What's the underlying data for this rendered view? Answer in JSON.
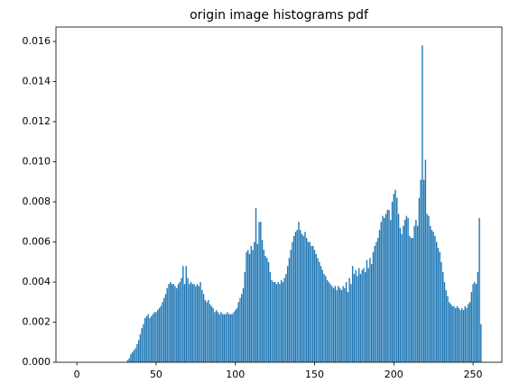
{
  "chart_data": {
    "type": "bar",
    "title": "origin image histograms pdf",
    "color": "#1f77b4",
    "bar_width": 0.8,
    "x": [
      0,
      1,
      2,
      3,
      4,
      5,
      6,
      7,
      8,
      9,
      10,
      11,
      12,
      13,
      14,
      15,
      16,
      17,
      18,
      19,
      20,
      21,
      22,
      23,
      24,
      25,
      26,
      27,
      28,
      29,
      30,
      31,
      32,
      33,
      34,
      35,
      36,
      37,
      38,
      39,
      40,
      41,
      42,
      43,
      44,
      45,
      46,
      47,
      48,
      49,
      50,
      51,
      52,
      53,
      54,
      55,
      56,
      57,
      58,
      59,
      60,
      61,
      62,
      63,
      64,
      65,
      66,
      67,
      68,
      69,
      70,
      71,
      72,
      73,
      74,
      75,
      76,
      77,
      78,
      79,
      80,
      81,
      82,
      83,
      84,
      85,
      86,
      87,
      88,
      89,
      90,
      91,
      92,
      93,
      94,
      95,
      96,
      97,
      98,
      99,
      100,
      101,
      102,
      103,
      104,
      105,
      106,
      107,
      108,
      109,
      110,
      111,
      112,
      113,
      114,
      115,
      116,
      117,
      118,
      119,
      120,
      121,
      122,
      123,
      124,
      125,
      126,
      127,
      128,
      129,
      130,
      131,
      132,
      133,
      134,
      135,
      136,
      137,
      138,
      139,
      140,
      141,
      142,
      143,
      144,
      145,
      146,
      147,
      148,
      149,
      150,
      151,
      152,
      153,
      154,
      155,
      156,
      157,
      158,
      159,
      160,
      161,
      162,
      163,
      164,
      165,
      166,
      167,
      168,
      169,
      170,
      171,
      172,
      173,
      174,
      175,
      176,
      177,
      178,
      179,
      180,
      181,
      182,
      183,
      184,
      185,
      186,
      187,
      188,
      189,
      190,
      191,
      192,
      193,
      194,
      195,
      196,
      197,
      198,
      199,
      200,
      201,
      202,
      203,
      204,
      205,
      206,
      207,
      208,
      209,
      210,
      211,
      212,
      213,
      214,
      215,
      216,
      217,
      218,
      219,
      220,
      221,
      222,
      223,
      224,
      225,
      226,
      227,
      228,
      229,
      230,
      231,
      232,
      233,
      234,
      235,
      236,
      237,
      238,
      239,
      240,
      241,
      242,
      243,
      244,
      245,
      246,
      247,
      248,
      249,
      250,
      251,
      252,
      253,
      254,
      255
    ],
    "values": [
      0,
      0,
      0,
      0,
      0,
      0,
      0,
      0,
      0,
      0,
      0,
      0,
      0,
      0,
      0,
      0,
      0,
      0,
      0,
      0,
      0,
      0,
      0,
      0,
      0,
      0,
      0,
      0,
      0,
      0,
      0,
      0,
      0.0001,
      0.0002,
      0.0004,
      0.0005,
      0.0006,
      0.0007,
      0.0009,
      0.0011,
      0.0014,
      0.0017,
      0.0019,
      0.0022,
      0.0023,
      0.0024,
      0.0022,
      0.0023,
      0.0024,
      0.0025,
      0.0025,
      0.0026,
      0.0027,
      0.0028,
      0.003,
      0.0032,
      0.0034,
      0.0037,
      0.0039,
      0.004,
      0.0039,
      0.0039,
      0.0038,
      0.0037,
      0.0039,
      0.004,
      0.0042,
      0.0048,
      0.0039,
      0.0048,
      0.0042,
      0.0039,
      0.004,
      0.0039,
      0.0039,
      0.0038,
      0.0039,
      0.0038,
      0.004,
      0.0036,
      0.0034,
      0.0031,
      0.003,
      0.0031,
      0.0029,
      0.0028,
      0.0027,
      0.0025,
      0.0026,
      0.0025,
      0.0024,
      0.0025,
      0.0024,
      0.0024,
      0.0024,
      0.0025,
      0.0024,
      0.0024,
      0.0024,
      0.0025,
      0.0026,
      0.0027,
      0.003,
      0.0032,
      0.0034,
      0.0037,
      0.0045,
      0.0055,
      0.0056,
      0.0054,
      0.0058,
      0.0056,
      0.006,
      0.0077,
      0.0059,
      0.007,
      0.007,
      0.0061,
      0.0056,
      0.0053,
      0.0052,
      0.005,
      0.0045,
      0.0041,
      0.004,
      0.004,
      0.0039,
      0.004,
      0.0039,
      0.0041,
      0.004,
      0.0042,
      0.0044,
      0.0048,
      0.0052,
      0.0056,
      0.006,
      0.0063,
      0.0065,
      0.0066,
      0.007,
      0.0066,
      0.0064,
      0.0063,
      0.0065,
      0.0062,
      0.006,
      0.006,
      0.0058,
      0.0058,
      0.0056,
      0.0054,
      0.0052,
      0.005,
      0.0048,
      0.0046,
      0.0044,
      0.0043,
      0.0041,
      0.004,
      0.0039,
      0.0038,
      0.0037,
      0.0038,
      0.0036,
      0.0038,
      0.0037,
      0.0036,
      0.0038,
      0.0037,
      0.004,
      0.0035,
      0.0042,
      0.0039,
      0.0048,
      0.0044,
      0.0046,
      0.0043,
      0.0047,
      0.0044,
      0.0046,
      0.0047,
      0.0045,
      0.0051,
      0.0047,
      0.0052,
      0.0049,
      0.0055,
      0.0058,
      0.006,
      0.0062,
      0.0066,
      0.007,
      0.0073,
      0.0072,
      0.0074,
      0.0076,
      0.0076,
      0.0071,
      0.008,
      0.0084,
      0.0086,
      0.0082,
      0.0074,
      0.0067,
      0.0064,
      0.0068,
      0.0071,
      0.0073,
      0.0072,
      0.0063,
      0.0062,
      0.0062,
      0.0068,
      0.0071,
      0.0068,
      0.0082,
      0.0091,
      0.0158,
      0.0091,
      0.0101,
      0.0074,
      0.0073,
      0.0068,
      0.0066,
      0.0065,
      0.0063,
      0.006,
      0.0057,
      0.0055,
      0.005,
      0.0045,
      0.004,
      0.0036,
      0.0033,
      0.003,
      0.0029,
      0.0028,
      0.0028,
      0.0027,
      0.0028,
      0.0027,
      0.0026,
      0.0027,
      0.0026,
      0.0028,
      0.0027,
      0.0029,
      0.003,
      0.0035,
      0.0039,
      0.004,
      0.0039,
      0.0045,
      0.0072,
      0.0019
    ],
    "xlim": [
      -13.19,
      268.19
    ],
    "xticks": [
      0,
      50,
      100,
      150,
      200,
      250
    ],
    "ylim": [
      0,
      0.01672
    ],
    "yticks": [
      {
        "value": 0,
        "label": "0.000"
      },
      {
        "value": 0.002,
        "label": "0.002"
      },
      {
        "value": 0.004,
        "label": "0.004"
      },
      {
        "value": 0.006,
        "label": "0.006"
      },
      {
        "value": 0.008,
        "label": "0.008"
      },
      {
        "value": 0.01,
        "label": "0.010"
      },
      {
        "value": 0.012,
        "label": "0.012"
      },
      {
        "value": 0.014,
        "label": "0.014"
      },
      {
        "value": 0.016,
        "label": "0.016"
      }
    ]
  }
}
